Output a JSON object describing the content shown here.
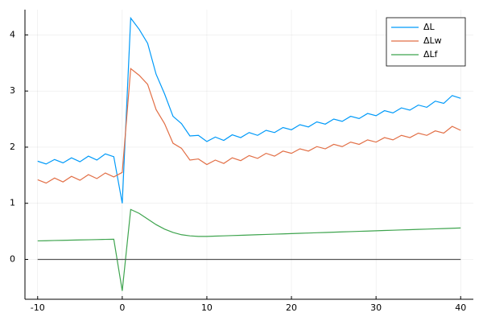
{
  "chart_data": {
    "type": "line",
    "x": [
      -10,
      -9,
      -8,
      -7,
      -6,
      -5,
      -4,
      -3,
      -2,
      -1,
      0,
      1,
      2,
      3,
      4,
      5,
      6,
      7,
      8,
      9,
      10,
      11,
      12,
      13,
      14,
      15,
      16,
      17,
      18,
      19,
      20,
      21,
      22,
      23,
      24,
      25,
      26,
      27,
      28,
      29,
      30,
      31,
      32,
      33,
      34,
      35,
      36,
      37,
      38,
      39,
      40
    ],
    "series": [
      {
        "name": "ΔL",
        "color": "#009af9",
        "values": [
          1.75,
          1.7,
          1.78,
          1.72,
          1.81,
          1.74,
          1.84,
          1.77,
          1.88,
          1.83,
          1.0,
          4.3,
          4.1,
          3.85,
          3.3,
          2.95,
          2.55,
          2.42,
          2.2,
          2.21,
          2.1,
          2.18,
          2.12,
          2.22,
          2.17,
          2.26,
          2.21,
          2.3,
          2.26,
          2.35,
          2.31,
          2.4,
          2.36,
          2.45,
          2.41,
          2.5,
          2.46,
          2.55,
          2.51,
          2.6,
          2.56,
          2.65,
          2.61,
          2.7,
          2.66,
          2.75,
          2.71,
          2.82,
          2.78,
          2.92,
          2.87
        ]
      },
      {
        "name": "ΔLw",
        "color": "#e26f46",
        "values": [
          1.42,
          1.36,
          1.45,
          1.38,
          1.48,
          1.41,
          1.51,
          1.44,
          1.54,
          1.47,
          1.55,
          3.4,
          3.28,
          3.12,
          2.67,
          2.42,
          2.07,
          1.98,
          1.77,
          1.79,
          1.69,
          1.77,
          1.71,
          1.81,
          1.76,
          1.85,
          1.8,
          1.89,
          1.84,
          1.93,
          1.89,
          1.97,
          1.93,
          2.01,
          1.97,
          2.05,
          2.01,
          2.09,
          2.05,
          2.13,
          2.09,
          2.17,
          2.13,
          2.21,
          2.17,
          2.25,
          2.21,
          2.29,
          2.25,
          2.37,
          2.3
        ]
      },
      {
        "name": "ΔLf",
        "color": "#3ea44e",
        "values": [
          0.33,
          0.333,
          0.337,
          0.34,
          0.343,
          0.347,
          0.35,
          0.353,
          0.357,
          0.36,
          -0.56,
          0.89,
          0.82,
          0.72,
          0.62,
          0.54,
          0.48,
          0.44,
          0.42,
          0.41,
          0.41,
          0.415,
          0.42,
          0.425,
          0.43,
          0.435,
          0.44,
          0.445,
          0.45,
          0.455,
          0.46,
          0.465,
          0.47,
          0.475,
          0.48,
          0.485,
          0.49,
          0.495,
          0.5,
          0.505,
          0.51,
          0.515,
          0.52,
          0.525,
          0.53,
          0.535,
          0.54,
          0.545,
          0.55,
          0.555,
          0.56
        ]
      }
    ],
    "hline": 0,
    "hline_color": "#555555",
    "xlim": [
      -11.5,
      41.5
    ],
    "xticks": [
      -10,
      0,
      10,
      20,
      30,
      40
    ],
    "ylim": [
      -0.71,
      4.45
    ],
    "yticks": [
      0,
      1,
      2,
      3,
      4
    ],
    "grid": true,
    "legend": "top-right"
  }
}
